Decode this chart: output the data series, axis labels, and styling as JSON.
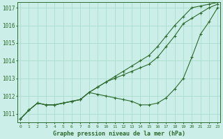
{
  "bg_color": "#cceee8",
  "grid_color": "#aaddcc",
  "line_color": "#2d6a2d",
  "x_labels": [
    0,
    1,
    2,
    3,
    4,
    5,
    6,
    7,
    8,
    9,
    10,
    11,
    12,
    13,
    14,
    15,
    16,
    17,
    18,
    19,
    20,
    21,
    22,
    23
  ],
  "ylim": [
    1010.5,
    1017.3
  ],
  "yticks": [
    1011,
    1012,
    1013,
    1014,
    1015,
    1016,
    1017
  ],
  "xlabel": "Graphe pression niveau de la mer (hPa)",
  "series1": [
    1010.7,
    1011.2,
    1011.6,
    1011.5,
    1011.5,
    1011.6,
    1011.7,
    1011.8,
    1012.2,
    1012.1,
    1012.0,
    1011.9,
    1011.8,
    1011.7,
    1011.5,
    1011.5,
    1011.6,
    1011.9,
    1012.4,
    1013.0,
    1014.2,
    1015.5,
    1016.2,
    1017.0
  ],
  "series2": [
    1010.7,
    1011.2,
    1011.6,
    1011.5,
    1011.5,
    1011.6,
    1011.7,
    1011.8,
    1012.2,
    1012.5,
    1012.8,
    1013.0,
    1013.2,
    1013.4,
    1013.6,
    1013.8,
    1014.2,
    1014.8,
    1015.4,
    1016.1,
    1016.4,
    1016.7,
    1017.0,
    1017.2
  ],
  "series3": [
    1010.7,
    1011.2,
    1011.6,
    1011.5,
    1011.5,
    1011.6,
    1011.7,
    1011.8,
    1012.2,
    1012.5,
    1012.8,
    1013.1,
    1013.4,
    1013.7,
    1014.0,
    1014.3,
    1014.8,
    1015.4,
    1016.0,
    1016.5,
    1017.0,
    1017.1,
    1017.2,
    1017.3
  ]
}
